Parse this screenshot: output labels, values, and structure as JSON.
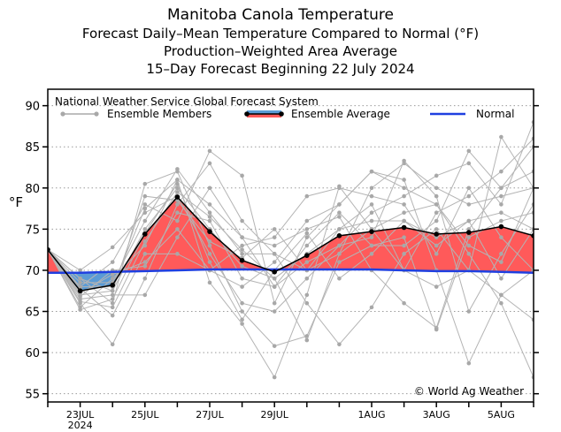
{
  "titles": {
    "title": "Manitoba Canola Temperature",
    "subtitle1": "Forecast Daily–Mean Temperature Compared to Normal (°F)",
    "subtitle2": "Production–Weighted Area Average",
    "subtitle3": "15–Day Forecast Beginning 22 July 2024"
  },
  "chart_data": {
    "type": "line",
    "system_label": "National Weather Service Global Forecast System",
    "ylabel": "°F",
    "ylim": [
      54,
      92
    ],
    "yticks": [
      55,
      60,
      65,
      70,
      75,
      80,
      85,
      90
    ],
    "xlim": [
      0,
      15
    ],
    "x_tick_labels": [
      {
        "x": 1,
        "label": "23JUL",
        "sublabel": "2024"
      },
      {
        "x": 3,
        "label": "25JUL",
        "sublabel": ""
      },
      {
        "x": 5,
        "label": "27JUL",
        "sublabel": ""
      },
      {
        "x": 7,
        "label": "29JUL",
        "sublabel": ""
      },
      {
        "x": 10,
        "label": "1AUG",
        "sublabel": ""
      },
      {
        "x": 12,
        "label": "3AUG",
        "sublabel": ""
      },
      {
        "x": 14,
        "label": "5AUG",
        "sublabel": ""
      }
    ],
    "grid": true,
    "legend": {
      "placement": "top",
      "ensemble_members": "Ensemble Members",
      "ensemble_average": "Ensemble Average",
      "normal": "Normal"
    },
    "copyright": "© World Ag Weather",
    "x": [
      0,
      1,
      2,
      3,
      4,
      5,
      6,
      7,
      8,
      9,
      10,
      11,
      12,
      13,
      14,
      15
    ],
    "ensemble_average": [
      72.5,
      67.5,
      68.2,
      74.4,
      78.9,
      74.7,
      71.2,
      69.8,
      71.8,
      74.2,
      74.7,
      75.2,
      74.4,
      74.6,
      75.3,
      74.2
    ],
    "normal": [
      69.7,
      69.7,
      69.8,
      69.9,
      70.0,
      70.1,
      70.1,
      70.1,
      70.1,
      70.1,
      70.1,
      70.0,
      69.9,
      69.9,
      69.8,
      69.7
    ],
    "ensemble_members": [
      [
        72.5,
        67.0,
        67.5,
        75.0,
        80.0,
        75.0,
        70.5,
        69.0,
        72.0,
        75.0,
        76.0,
        76.0,
        74.0,
        76.0,
        77.0,
        75.0
      ],
      [
        72.5,
        66.0,
        61.0,
        69.0,
        78.0,
        83.0,
        76.0,
        72.0,
        70.0,
        72.0,
        80.0,
        83.0,
        80.0,
        78.0,
        79.0,
        80.0
      ],
      [
        72.5,
        69.0,
        66.0,
        80.5,
        82.0,
        73.0,
        65.0,
        60.8,
        62.0,
        71.0,
        73.0,
        73.0,
        76.0,
        84.5,
        80.0,
        85.0
      ],
      [
        72.5,
        68.0,
        71.0,
        78.0,
        76.0,
        84.5,
        81.5,
        66.0,
        74.0,
        78.0,
        82.0,
        80.0,
        78.0,
        72.0,
        66.0,
        57.0
      ],
      [
        72.5,
        65.5,
        69.0,
        73.0,
        81.0,
        68.5,
        63.5,
        57.0,
        67.0,
        80.2,
        75.0,
        70.0,
        68.0,
        70.0,
        86.2,
        80.0
      ],
      [
        72.5,
        70.0,
        72.8,
        77.0,
        79.0,
        72.0,
        66.0,
        65.0,
        69.0,
        73.0,
        77.0,
        79.0,
        81.5,
        83.0,
        78.0,
        88.0
      ],
      [
        72.5,
        66.5,
        67.0,
        67.0,
        74.0,
        80.0,
        74.0,
        73.0,
        75.0,
        76.5,
        70.0,
        66.0,
        63.0,
        75.0,
        80.0,
        82.0
      ],
      [
        72.5,
        68.5,
        68.5,
        76.0,
        82.3,
        77.0,
        72.0,
        72.0,
        66.0,
        61.0,
        65.5,
        72.0,
        75.0,
        70.0,
        67.0,
        64.0
      ],
      [
        72.5,
        67.8,
        64.5,
        72.0,
        72.0,
        70.0,
        73.0,
        74.0,
        79.0,
        80.0,
        79.0,
        78.0,
        72.0,
        80.0,
        74.0,
        70.0
      ],
      [
        72.5,
        66.8,
        70.0,
        70.5,
        77.0,
        76.0,
        69.0,
        68.0,
        71.0,
        73.0,
        74.0,
        83.3,
        79.0,
        65.0,
        72.0,
        78.0
      ],
      [
        72.5,
        65.2,
        66.5,
        74.5,
        80.5,
        71.0,
        64.0,
        70.0,
        74.5,
        69.0,
        72.0,
        76.0,
        73.0,
        76.0,
        69.0,
        75.0
      ],
      [
        72.5,
        67.2,
        69.5,
        71.0,
        75.0,
        70.0,
        68.0,
        71.0,
        76.0,
        78.0,
        82.0,
        81.0,
        70.0,
        58.7,
        67.0,
        70.0
      ],
      [
        72.5,
        69.0,
        67.5,
        79.0,
        78.5,
        73.5,
        71.5,
        75.0,
        70.0,
        75.0,
        78.0,
        70.0,
        77.0,
        79.0,
        82.0,
        86.0
      ],
      [
        72.5,
        68.0,
        68.0,
        77.5,
        81.0,
        78.0,
        74.0,
        68.0,
        73.0,
        77.0,
        73.0,
        74.0,
        62.8,
        74.0,
        76.0,
        77.0
      ],
      [
        72.5,
        66.2,
        65.5,
        73.5,
        79.5,
        76.5,
        72.5,
        69.0,
        61.5,
        72.0,
        75.0,
        77.0,
        78.0,
        73.0,
        71.0,
        80.0
      ]
    ]
  }
}
